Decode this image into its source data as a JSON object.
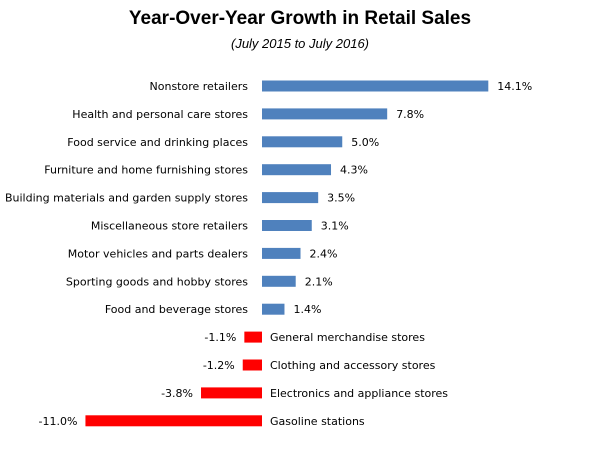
{
  "chart_data": {
    "type": "bar",
    "orientation": "horizontal",
    "title": "Year-Over-Year  Growth  in Retail Sales",
    "subtitle": "(July 2015 to July 2016)",
    "categories": [
      "Nonstore retailers",
      "Health and personal care stores",
      "Food service and drinking places",
      "Furniture and home furnishing stores",
      "Building materials and garden supply stores",
      "Miscellaneous store retailers",
      "Motor vehicles and parts dealers",
      "Sporting goods and hobby stores",
      "Food and beverage stores",
      "General merchandise stores",
      "Clothing and accessory stores",
      "Electronics and appliance stores",
      "Gasoline stations"
    ],
    "values": [
      14.1,
      7.8,
      5.0,
      4.3,
      3.5,
      3.1,
      2.4,
      2.1,
      1.4,
      -1.1,
      -1.2,
      -3.8,
      -11.0
    ],
    "data_labels": [
      "14.1%",
      "7.8%",
      "5.0%",
      "4.3%",
      "3.5%",
      "3.1%",
      "2.4%",
      "2.1%",
      "1.4%",
      "-1.1%",
      "-1.2%",
      "-3.8%",
      "-11.0%"
    ],
    "xlim": [
      -11.0,
      14.1
    ],
    "grid": false,
    "legend": "none",
    "colors": {
      "positive": "#4f81bd",
      "negative": "#ff0000"
    }
  }
}
